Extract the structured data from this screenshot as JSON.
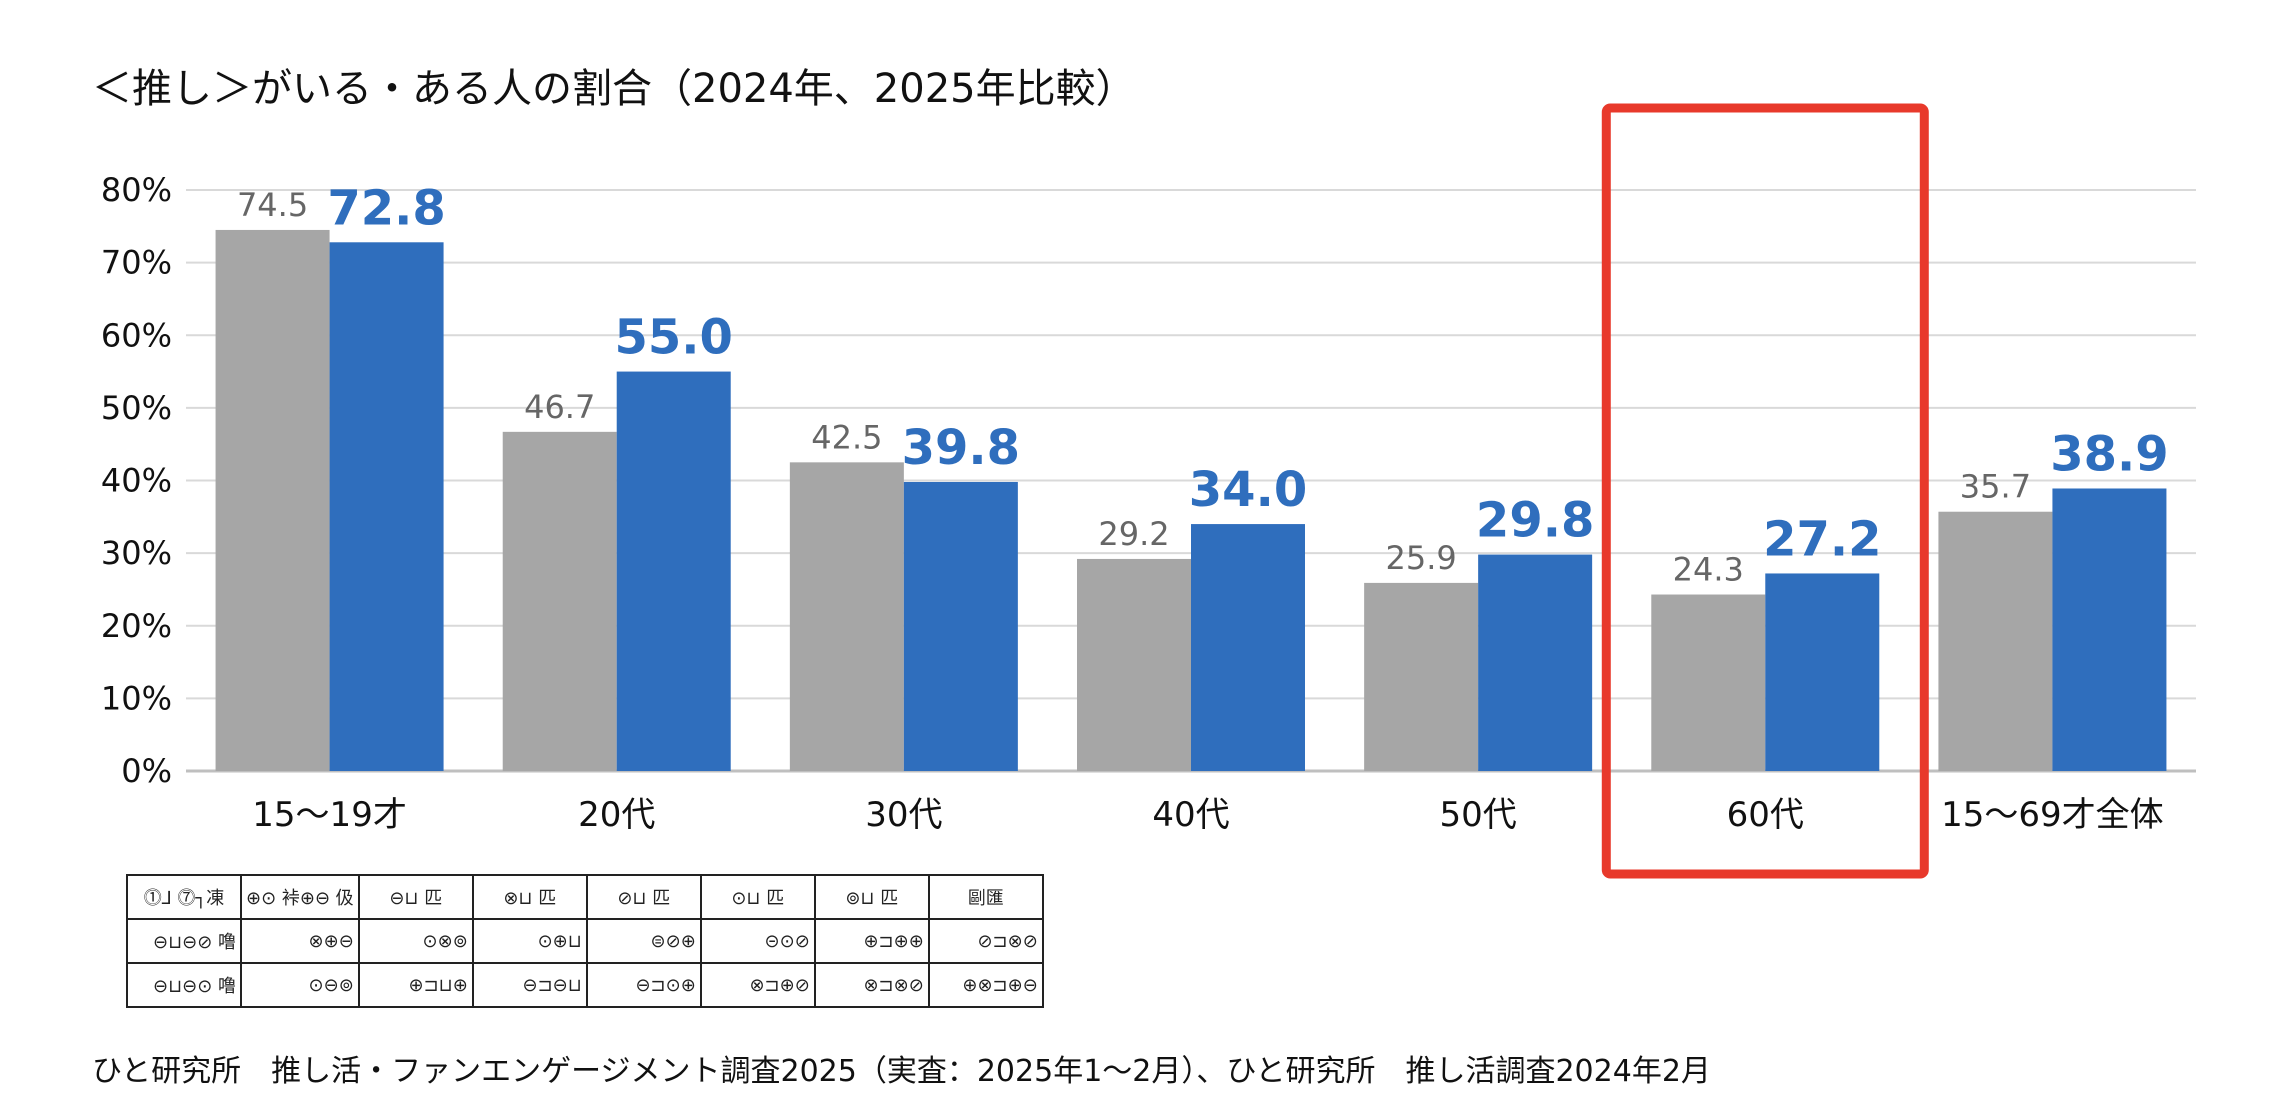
{
  "chart_data": {
    "type": "bar",
    "title": "＜推し＞がいる・ある人の割合（2024年、2025年比較）",
    "categories": [
      "15～19才",
      "20代",
      "30代",
      "40代",
      "50代",
      "60代",
      "15～69才全体"
    ],
    "series": [
      {
        "values": [
          74.5,
          46.7,
          42.5,
          29.2,
          25.9,
          24.3,
          35.7
        ]
      },
      {
        "values": [
          72.8,
          55.0,
          39.8,
          34.0,
          29.8,
          27.2,
          38.9
        ]
      }
    ],
    "value_labels": [
      [
        "74.5",
        "46.7",
        "42.5",
        "29.2",
        "25.9",
        "24.3",
        "35.7"
      ],
      [
        "72.8",
        "55.0",
        "39.8",
        "34.0",
        "29.8",
        "27.2",
        "38.9"
      ]
    ],
    "y_ticks": [
      "0%",
      "10%",
      "20%",
      "30%",
      "40%",
      "50%",
      "60%",
      "70%",
      "80%"
    ],
    "ylim": [
      0,
      80
    ],
    "grid": true,
    "highlighted_category": "60代",
    "colors": {
      "series_2024": "#a6a6a6",
      "series_2025": "#2f6ebd",
      "label_2024": "#666666",
      "label_2025": "#2f6ebd",
      "highlight": "#e8392b",
      "grid": "#d9d9d9"
    }
  },
  "sample_table": {
    "header": [
      "⓵⅃ ⓻┐凍",
      "⊕⊙ 裃⊕⊖ 伋",
      "⊖⊔ 匹",
      "⊗⊔ 匹",
      "⊘⊔ 匹",
      "⊙⊔ 匹",
      "⊚⊔ 匹",
      "剾匯"
    ],
    "rows": [
      [
        "⊖⊔⊖⊘ 噜",
        "⊗⊕⊖",
        "⊙⊗⊚",
        "⊙⊕⊔",
        "⊜⊘⊕",
        "⊝⊙⊘",
        "⊕⊐⊕⊕",
        "⊘⊐⊗⊘"
      ],
      [
        "⊖⊔⊖⊙ 噜",
        "⊙⊖⊚",
        "⊕⊐⊔⊕",
        "⊖⊐⊖⊔",
        "⊖⊐⊙⊕",
        "⊗⊐⊕⊘",
        "⊗⊐⊗⊘",
        "⊕⊗⊐⊕⊖"
      ]
    ]
  },
  "source_note": "ひと研究所　推し活・ファンエンゲージメント調査2025（実査：2025年1～2月）、ひと研究所　推し活調査2024年2月"
}
